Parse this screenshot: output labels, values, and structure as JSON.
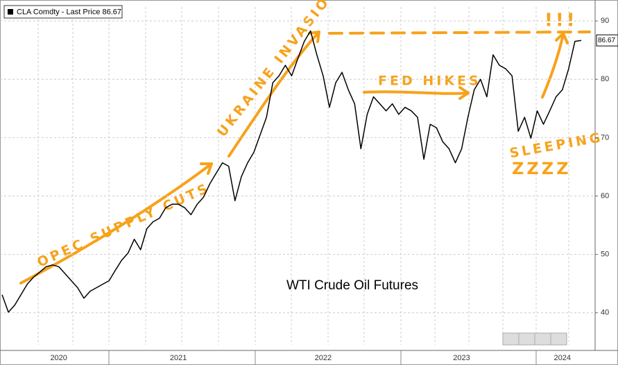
{
  "chart_data": {
    "type": "line",
    "title": "WTI Crude Oil Futures",
    "categories": [
      null,
      null,
      null,
      null,
      null,
      null,
      null,
      null,
      null,
      "2020",
      null,
      null,
      null,
      null,
      null,
      null,
      null,
      null,
      null,
      null,
      null,
      null,
      null,
      null,
      null,
      null,
      null,
      null,
      "2021",
      null,
      null,
      null,
      null,
      null,
      null,
      null,
      null,
      null,
      null,
      null,
      null,
      null,
      null,
      null,
      null,
      null,
      null,
      null,
      null,
      null,
      null,
      "2022",
      null,
      null,
      null,
      null,
      null,
      null,
      null,
      null,
      null,
      null,
      null,
      null,
      null,
      null,
      null,
      null,
      null,
      null,
      null,
      null,
      null,
      "2023",
      null,
      null,
      null,
      null,
      null,
      null,
      null,
      null,
      null,
      null,
      null,
      null,
      null,
      null,
      null,
      "2024",
      null,
      null,
      null
    ],
    "series": [
      {
        "name": "CLA Comdty - Last Price",
        "color": "#000000",
        "values": [
          43.1,
          40.1,
          41.3,
          43.1,
          44.9,
          46.1,
          47.0,
          47.9,
          48.2,
          47.9,
          46.7,
          45.5,
          44.3,
          42.5,
          43.7,
          44.3,
          44.9,
          45.5,
          47.3,
          49.0,
          50.2,
          52.6,
          50.8,
          54.4,
          55.6,
          56.2,
          58.0,
          58.6,
          58.6,
          58.0,
          56.8,
          58.6,
          59.8,
          62.1,
          63.9,
          65.7,
          65.1,
          59.2,
          63.3,
          65.7,
          67.5,
          70.5,
          73.5,
          79.4,
          80.6,
          82.4,
          80.6,
          83.6,
          86.5,
          88.3,
          84.2,
          80.6,
          75.2,
          79.4,
          81.2,
          78.2,
          75.8,
          68.1,
          74.0,
          77.0,
          75.8,
          74.6,
          75.8,
          74.0,
          75.2,
          74.6,
          73.5,
          66.3,
          72.3,
          71.7,
          69.3,
          68.1,
          65.7,
          68.1,
          73.5,
          78.2,
          80.0,
          77.0,
          84.2,
          82.4,
          81.8,
          80.6,
          71.1,
          73.5,
          69.9,
          74.6,
          72.3,
          74.6,
          77.0,
          78.2,
          81.8,
          86.5,
          86.67
        ]
      }
    ],
    "ylim": [
      34.5,
      92.4
    ],
    "yticks": [
      40,
      50,
      60,
      70,
      80,
      90
    ],
    "grid": true,
    "annotations": [
      "OPEC SUPPLY CUTS",
      "UKRAINE INVASION",
      "FED HIKES",
      "SLEEPING",
      "ZZZZ",
      "!!!"
    ]
  }
}
